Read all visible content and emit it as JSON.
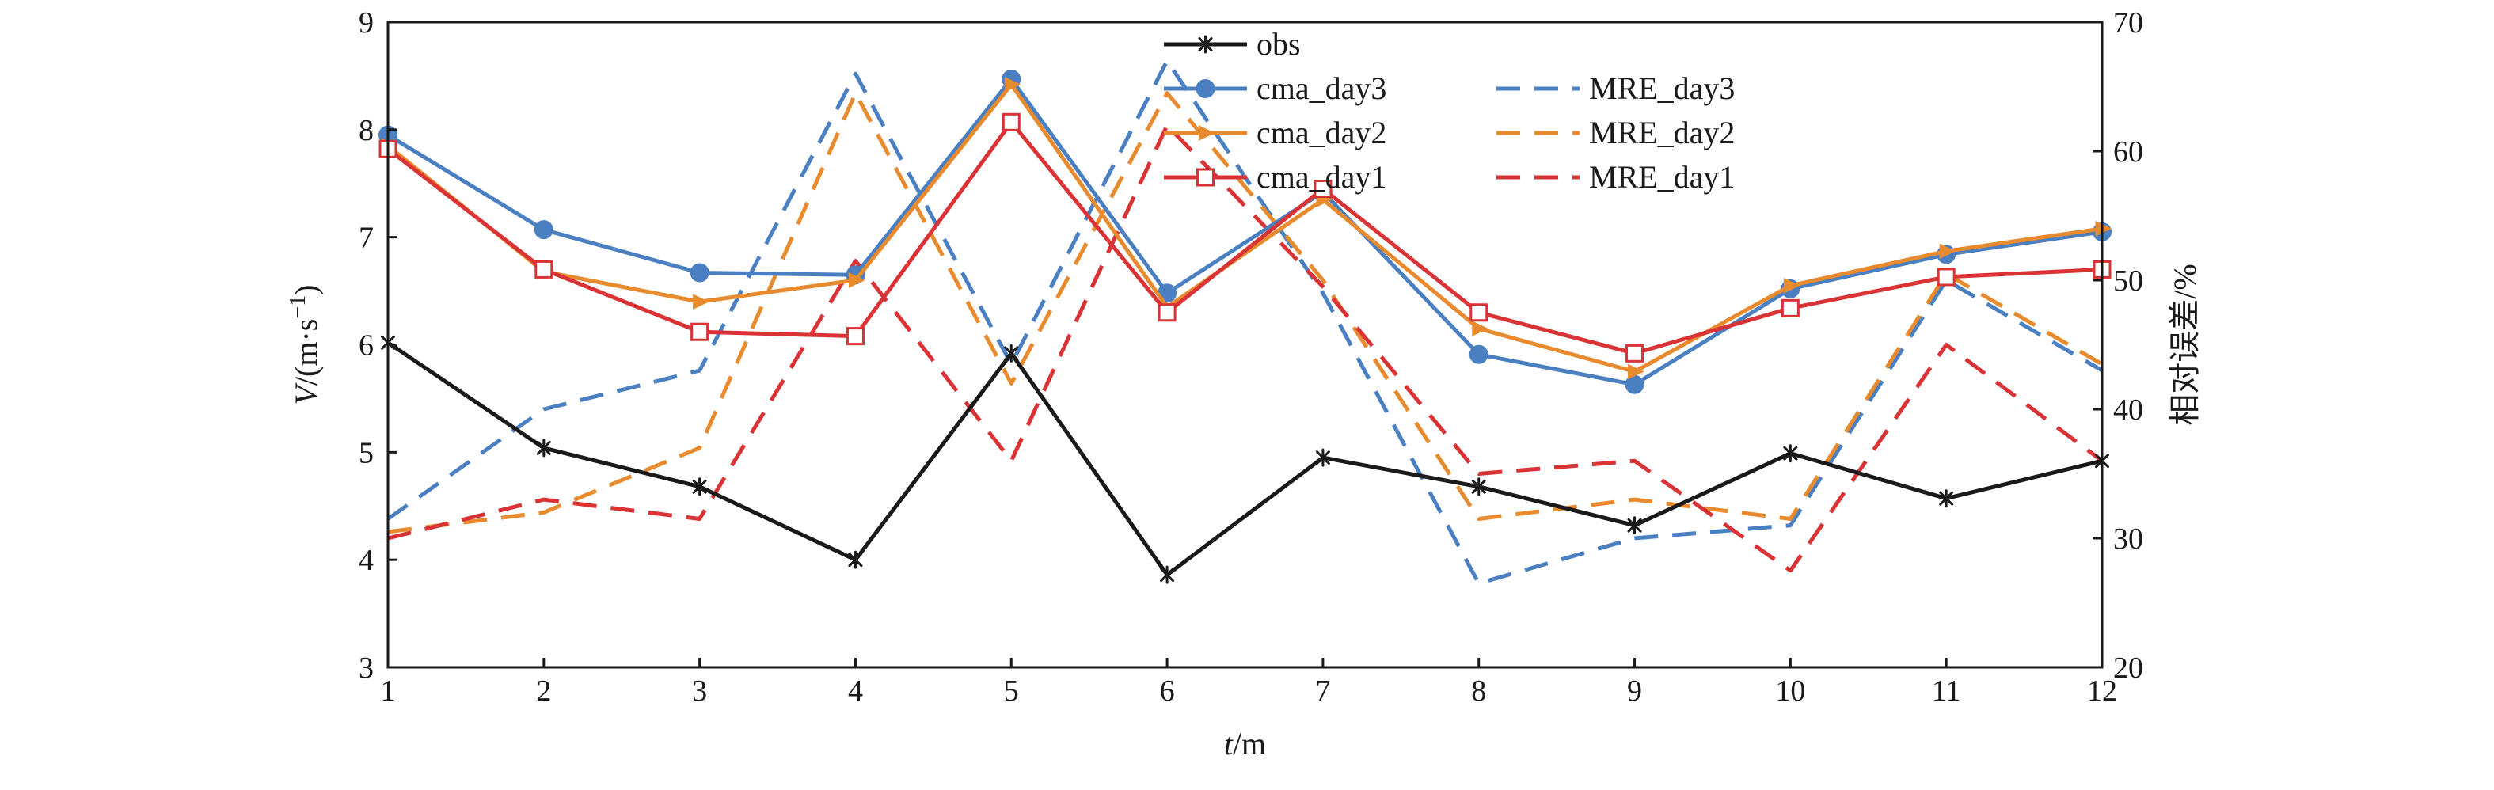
{
  "chart_data": {
    "type": "line",
    "xlabel": {
      "var": "t",
      "unit": "/m"
    },
    "ylabel_left": {
      "var": "V",
      "unit": "/(m·s",
      "sup": "−1",
      "close": ")"
    },
    "ylabel_right": "相对误差/%",
    "x": [
      1,
      2,
      3,
      4,
      5,
      6,
      7,
      8,
      9,
      10,
      11,
      12
    ],
    "xlim": [
      1,
      12
    ],
    "ylim_left": [
      3,
      9
    ],
    "ylim_right": [
      20,
      70
    ],
    "yticks_left": [
      3,
      4,
      5,
      6,
      7,
      8,
      9
    ],
    "yticks_right": [
      20,
      30,
      40,
      50,
      60,
      70
    ],
    "grid": false,
    "legend_position": "top-center",
    "series": [
      {
        "name": "obs",
        "axis": "left",
        "color": "#1a1a1a",
        "dash": "solid",
        "marker": "asterisk",
        "values": [
          6.02,
          5.04,
          4.68,
          4.0,
          5.92,
          3.86,
          4.95,
          4.68,
          4.32,
          4.99,
          4.57,
          4.92
        ]
      },
      {
        "name": "cma_day3",
        "axis": "left",
        "color": "#4a7fc1",
        "dash": "solid",
        "marker": "filled-circle",
        "values": [
          7.95,
          7.07,
          6.67,
          6.65,
          8.47,
          6.48,
          7.42,
          5.91,
          5.63,
          6.52,
          6.84,
          7.05
        ]
      },
      {
        "name": "cma_day2",
        "axis": "left",
        "color": "#e88a2e",
        "dash": "solid",
        "marker": "triangle-right",
        "values": [
          7.85,
          6.68,
          6.4,
          6.6,
          8.42,
          6.35,
          7.35,
          6.15,
          5.75,
          6.55,
          6.87,
          7.08
        ]
      },
      {
        "name": "cma_day1",
        "axis": "left",
        "color": "#d93335",
        "dash": "solid",
        "marker": "open-square",
        "values": [
          7.82,
          6.7,
          6.12,
          6.08,
          8.07,
          6.3,
          7.45,
          6.3,
          5.92,
          6.34,
          6.63,
          6.7
        ]
      },
      {
        "name": "MRE_day3",
        "axis": "right",
        "color": "#4a7fc1",
        "dash": "dashed",
        "marker": "none",
        "values": [
          31.5,
          40.0,
          43.0,
          66.0,
          43.5,
          67.0,
          49.0,
          26.5,
          30.0,
          31.0,
          50.0,
          43.0
        ]
      },
      {
        "name": "MRE_day2",
        "axis": "right",
        "color": "#e88a2e",
        "dash": "dashed",
        "marker": "none",
        "values": [
          30.5,
          32.0,
          37.0,
          64.5,
          42.0,
          64.5,
          50.0,
          31.5,
          33.0,
          31.5,
          50.5,
          43.5
        ]
      },
      {
        "name": "MRE_day1",
        "axis": "right",
        "color": "#d93335",
        "dash": "dashed",
        "marker": "none",
        "values": [
          30.0,
          33.0,
          31.5,
          51.5,
          36.0,
          62.0,
          49.5,
          35.0,
          36.0,
          27.5,
          45.0,
          36.0
        ]
      }
    ]
  }
}
